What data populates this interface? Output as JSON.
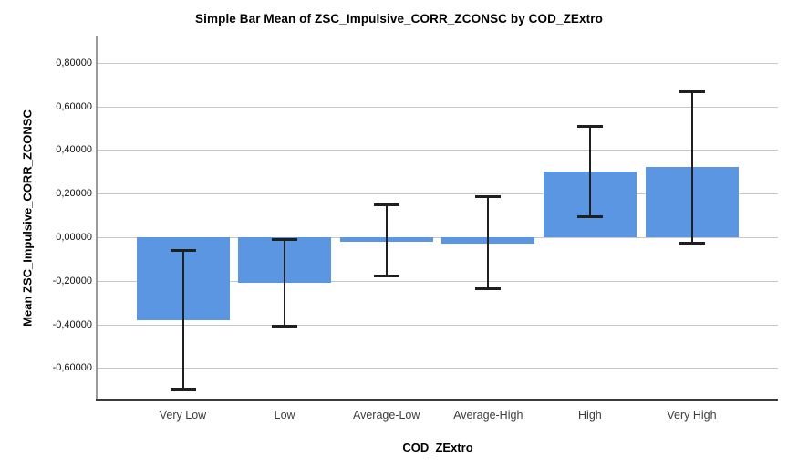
{
  "title": "Simple Bar Mean of ZSC_Impulsive_CORR_ZCONSC by COD_ZExtro",
  "chart_data": {
    "type": "bar",
    "title": "Simple Bar Mean of ZSC_Impulsive_CORR_ZCONSC by COD_ZExtro",
    "xlabel": "COD_ZExtro",
    "ylabel": "Mean ZSC_Impulsive_CORR_ZCONSC",
    "categories": [
      "Very Low",
      "Low",
      "Average-Low",
      "Average-High",
      "High",
      "Very High"
    ],
    "series": [
      {
        "name": "Mean ZSC_Impulsive_CORR_ZCONSC",
        "values": [
          -0.38,
          -0.21,
          -0.02,
          -0.03,
          0.3,
          0.32
        ]
      }
    ],
    "error_bars": [
      {
        "low": -0.7,
        "high": -0.06
      },
      {
        "low": -0.41,
        "high": -0.01
      },
      {
        "low": -0.18,
        "high": 0.15
      },
      {
        "low": -0.24,
        "high": 0.19
      },
      {
        "low": 0.09,
        "high": 0.51
      },
      {
        "low": -0.03,
        "high": 0.67
      }
    ],
    "ylim": [
      -0.745,
      0.92
    ],
    "yticks": [
      {
        "value": 0.8,
        "label": "0,80000"
      },
      {
        "value": 0.6,
        "label": "0,60000"
      },
      {
        "value": 0.4,
        "label": "0,40000"
      },
      {
        "value": 0.2,
        "label": "0,20000"
      },
      {
        "value": 0.0,
        "label": "0,00000"
      },
      {
        "value": -0.2,
        "label": "-0,20000"
      },
      {
        "value": -0.4,
        "label": "-0,40000"
      },
      {
        "value": -0.6,
        "label": "-0,60000"
      }
    ],
    "grid": true,
    "legend_position": "none",
    "colors": {
      "bar": "#5B96E3",
      "error": "#1F1F1F",
      "grid": "#C9C9C9",
      "axis_y": "#9A9A9A",
      "axis_x": "#3A3A3A",
      "background": "#FFFFFF",
      "title_text": "#000000",
      "tick_text": "#3D3D3D"
    }
  }
}
